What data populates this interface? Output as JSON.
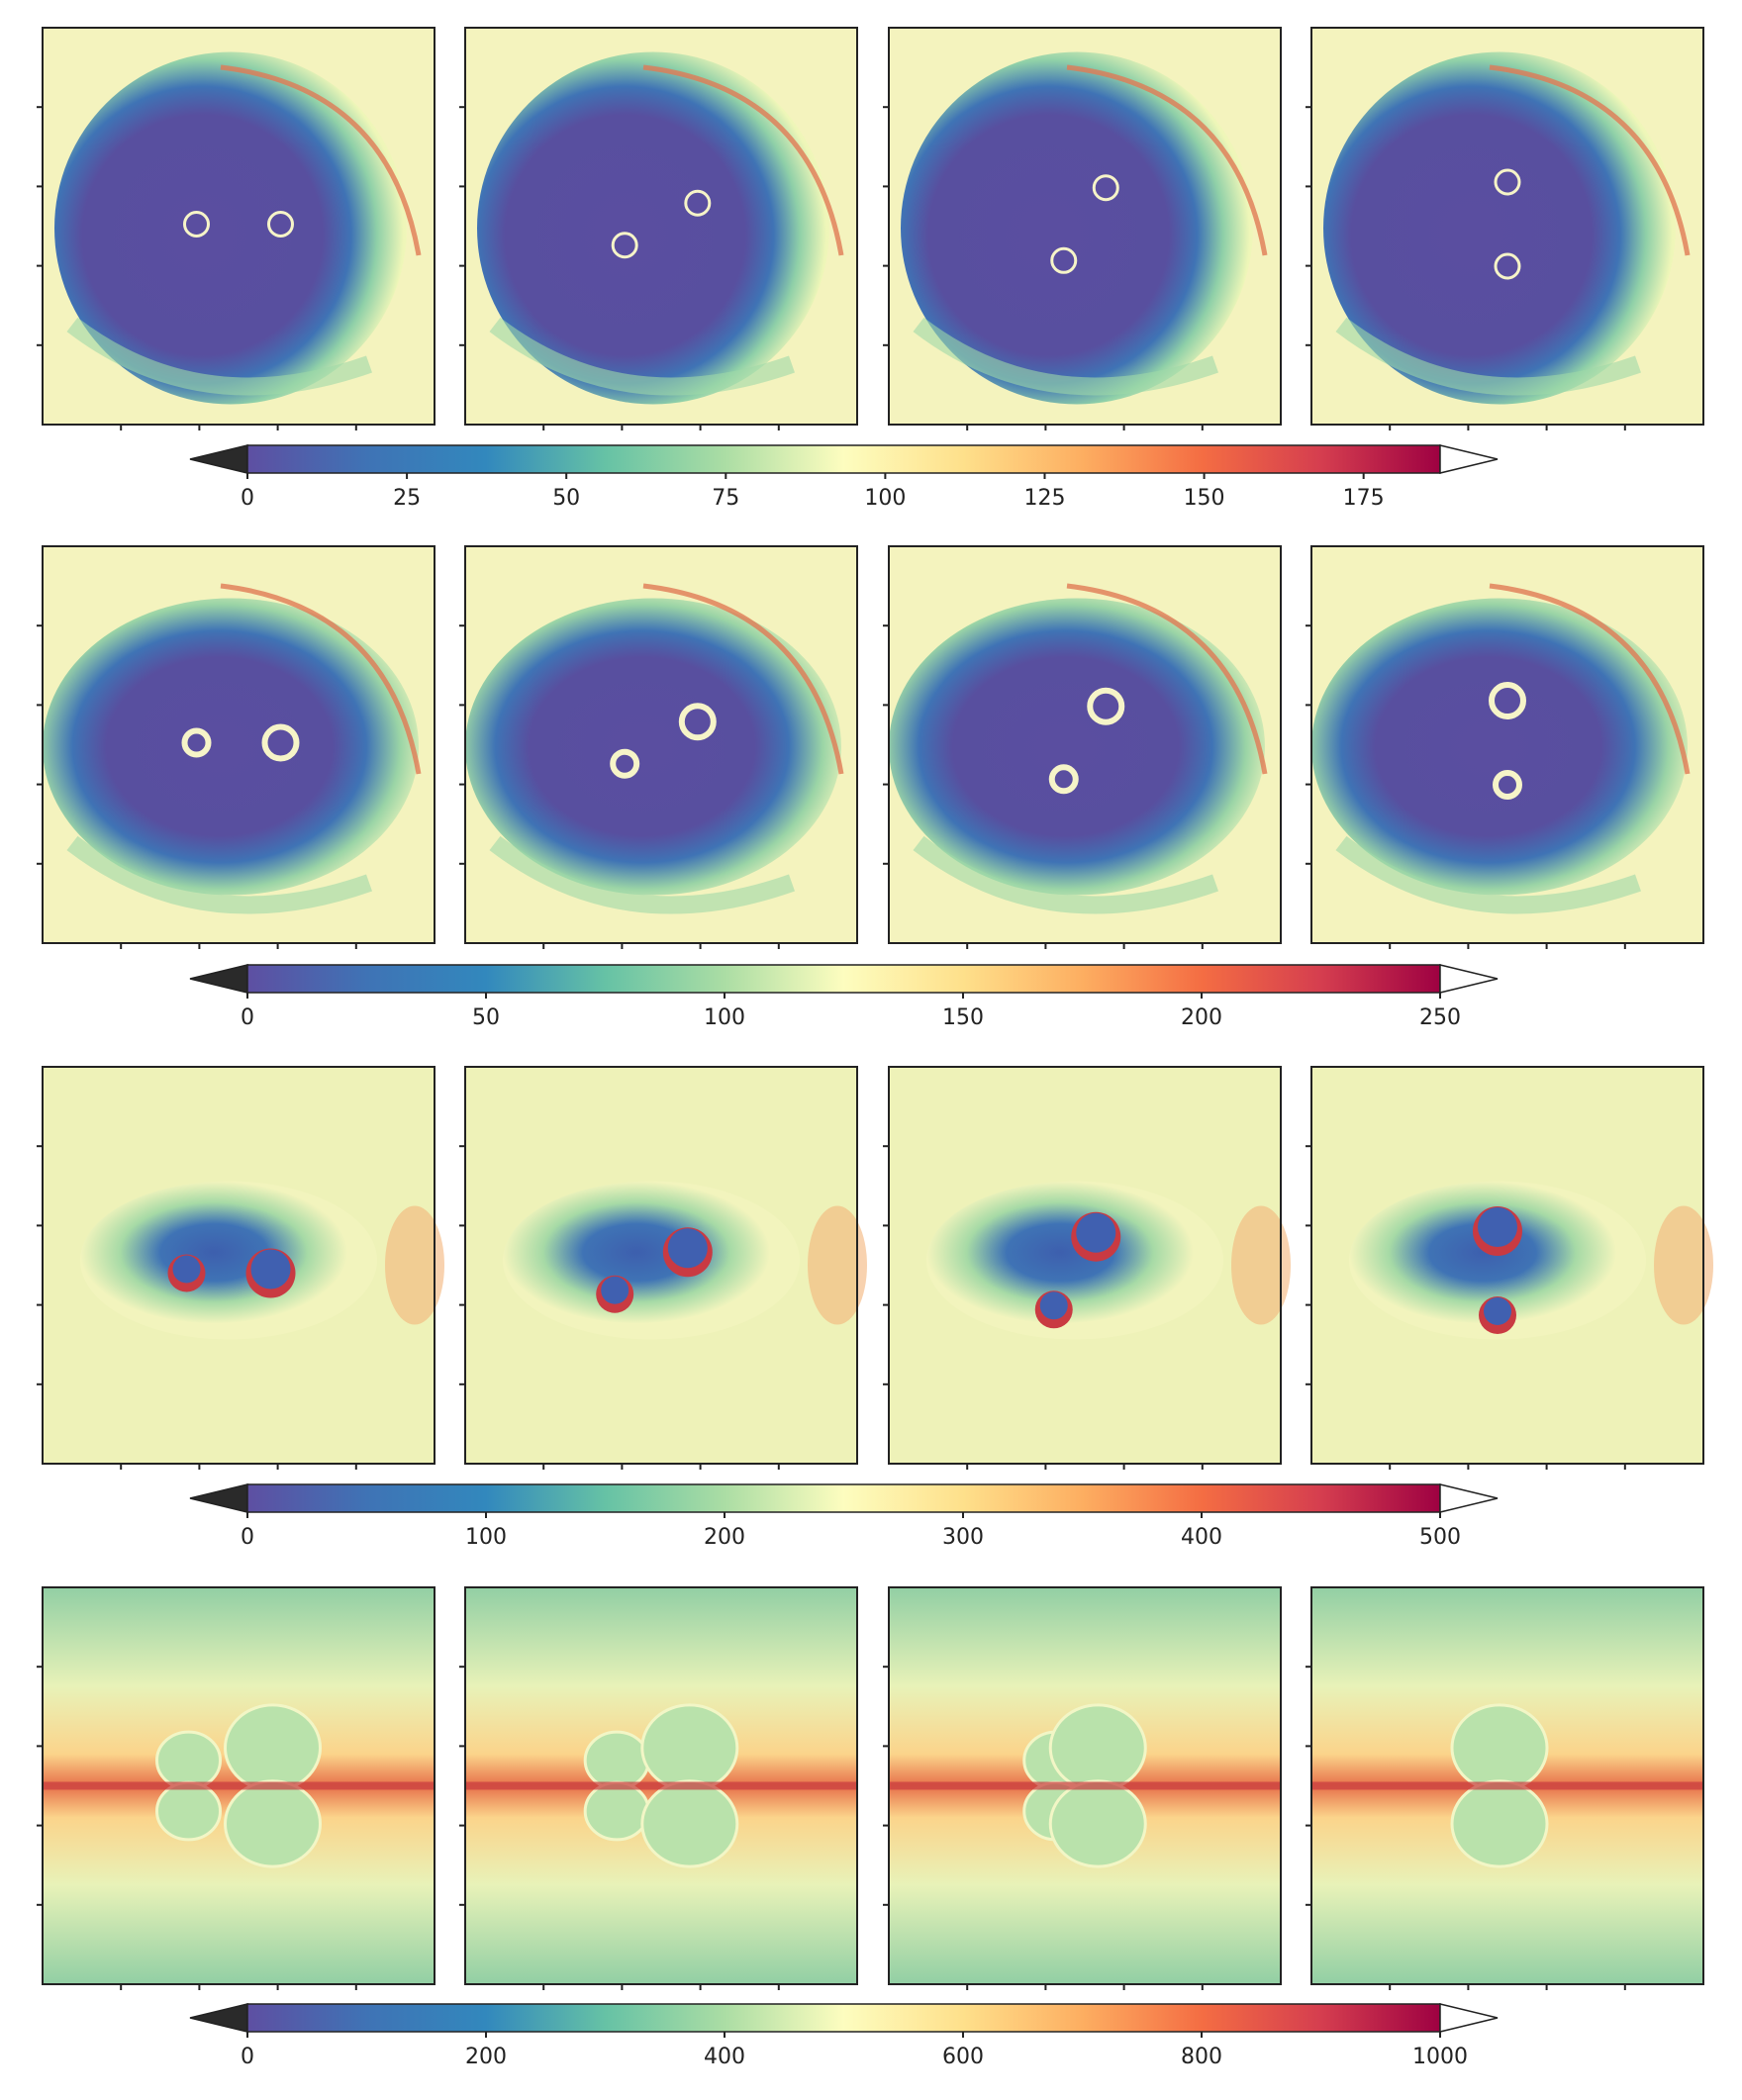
{
  "figure": {
    "description_rows": 4,
    "description_cols": 4
  },
  "chart_data": [
    {
      "type": "heatmap",
      "row": 1,
      "pattern": "spiral",
      "panels": 4,
      "binary_angles_deg": [
        0,
        30,
        60,
        90
      ],
      "colorbar": {
        "cmap": "Spectral_r",
        "vmin": 0,
        "vmax": 187,
        "extend": "both",
        "ticks": [
          0,
          25,
          50,
          75,
          100,
          125,
          150,
          175
        ],
        "tick_labels": [
          "0",
          "25",
          "50",
          "75",
          "100",
          "125",
          "150",
          "175"
        ]
      }
    },
    {
      "type": "heatmap",
      "row": 2,
      "pattern": "spiral",
      "panels": 4,
      "binary_angles_deg": [
        0,
        30,
        60,
        90
      ],
      "colorbar": {
        "cmap": "Spectral_r",
        "vmin": 0,
        "vmax": 250,
        "extend": "both",
        "ticks": [
          0,
          50,
          100,
          150,
          200,
          250
        ],
        "tick_labels": [
          "0",
          "50",
          "100",
          "150",
          "200",
          "250"
        ]
      }
    },
    {
      "type": "heatmap",
      "row": 3,
      "pattern": "edge-on",
      "panels": 4,
      "binary_angles_deg": [
        0,
        30,
        60,
        90
      ],
      "colorbar": {
        "cmap": "Spectral_r",
        "vmin": 0,
        "vmax": 500,
        "extend": "both",
        "ticks": [
          0,
          100,
          200,
          300,
          400,
          500
        ],
        "tick_labels": [
          "0",
          "100",
          "200",
          "300",
          "400",
          "500"
        ]
      }
    },
    {
      "type": "heatmap",
      "row": 4,
      "pattern": "lobes",
      "panels": 4,
      "binary_angles_deg": [
        0,
        30,
        60,
        90
      ],
      "colorbar": {
        "cmap": "Spectral_r",
        "vmin": 0,
        "vmax": 1000,
        "extend": "both",
        "ticks": [
          0,
          200,
          400,
          600,
          800,
          1000
        ],
        "tick_labels": [
          "0",
          "200",
          "400",
          "600",
          "800",
          "1000"
        ]
      }
    }
  ]
}
